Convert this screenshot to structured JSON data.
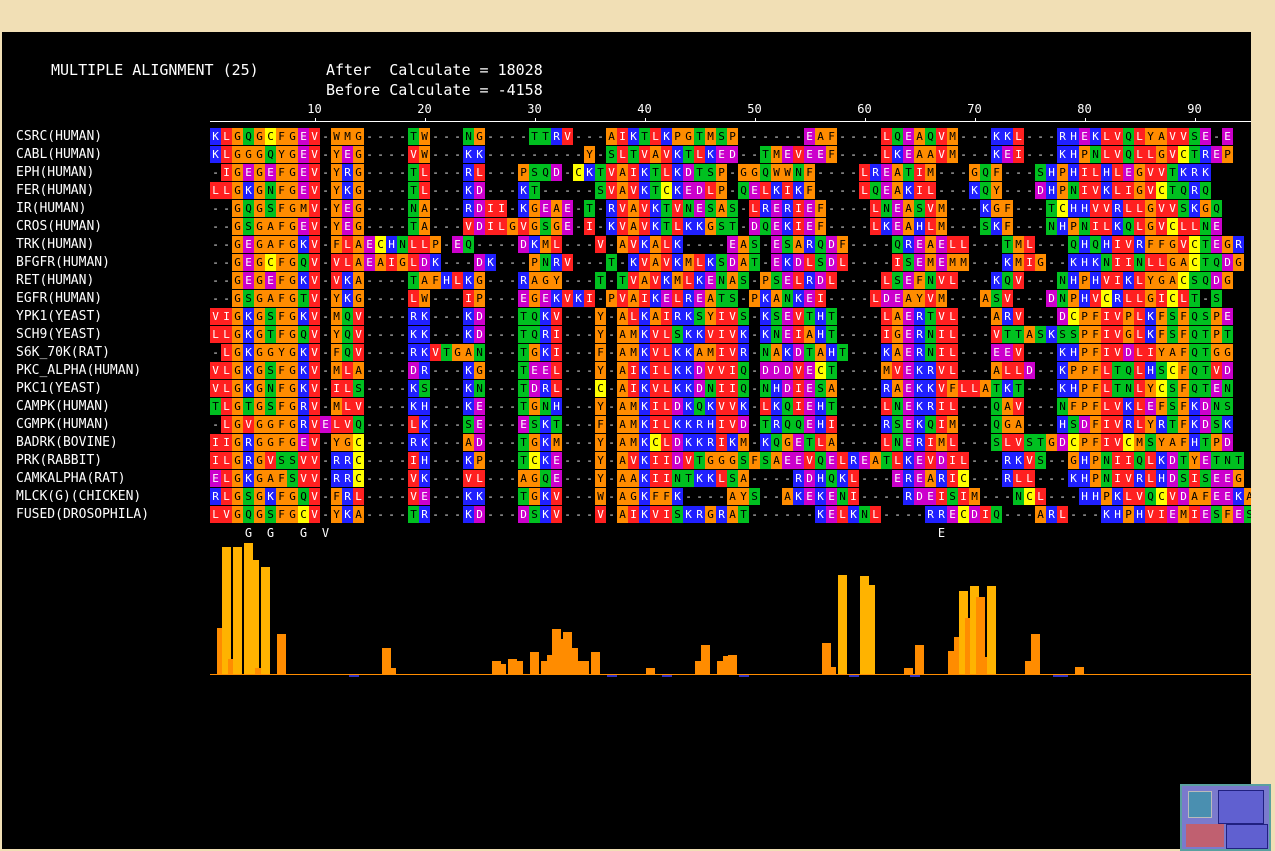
{
  "header": {
    "title": "MULTIPLE ALIGNMENT (25)",
    "after_label": "After  Calculate = 18028",
    "before_label": "Before Calculate = -4158"
  },
  "ruler": {
    "numbers": [
      "10",
      "20",
      "30",
      "40",
      "50",
      "60",
      "70",
      "80",
      "90"
    ]
  },
  "sequences": [
    {
      "name": "CSRC(HUMAN)",
      "seq": "KLGQGCFGEV-WMG----TW---NG----TTRV---AIKTLKPGTMSP------EAF----LQEAQVM---KKL---RHEKLVQLYAVVSE-E"
    },
    {
      "name": "CABL(HUMAN)",
      "seq": "KLGGGQYGEV-YEG----VW---KK---------Y-SLTVAVKTLKED--TMEVEEF----LKEAAVM---KEI---KHPNLVQLLGVCTREP"
    },
    {
      "name": "EPH(HUMAN)",
      "seq": "-IGEGEFGEV-YRG----TL---RL---PSQD-CKTVAIKTLKDTSP-GGQWWNF----LREATIM---GQF---SHPHILHLEGVVTKRK"
    },
    {
      "name": "FER(HUMAN)",
      "seq": "LLGKGNFGEV-YKG----TL---KD---KT-----SVAVKTCKEDLP-QELKIKF----LQEAKIL---KQY---DHPNIVKLIGVCTQRQ"
    },
    {
      "name": "IR(HUMAN)",
      "seq": "--GQGSFGMV-YEG----NA---RDII-KGEAE-T-RVAVKTVNESAS-LRERIEF----LNEASVM---KGF---TCHHVVRLLGVVSKGQ"
    },
    {
      "name": "CROS(HUMAN)",
      "seq": "--GSGAFGEV-YEG----TA---VDILGVGSGE-I-KVAVKTLKKGST-DQEKIEF----LKEAHLM---SKF---NHPNILKQLGVCLLNE"
    },
    {
      "name": "TRK(HUMAN)",
      "seq": "--GEGAFGKV-FLAECHNLLP-EQ----DKML---V-AVKALK----EAS-ESARQDF----QREAELL---TML---QHQHIVRFFGVCTEGR"
    },
    {
      "name": "BFGFR(HUMAN)",
      "seq": "--GEGCFGQV-VLAEAIGLDK---DK---PNRV---T-KVAVKMLKSDAT-EKDLSDL----ISEMEMM---KMIG--KHKNIINLLGACTQDG"
    },
    {
      "name": "RET(HUMAN)",
      "seq": "--GEGEFGKV-VKA----TAFHLKG---RAGY---T-TVAVKMLKENAS-PSELRDL----LSEFNVL---KQV---NHPHVIKLYGACSQDG"
    },
    {
      "name": "EGFR(HUMAN)",
      "seq": "--GSGAFGTV-YKG----LW---IP---EGEKVKI-PVAIKELREATS-PKANKEI----LDEAYVM---ASV---DNPHVCRLLGICLT-S"
    },
    {
      "name": "YPK1(YEAST)",
      "seq": "VIGKGSFGKV-MQV----RK---KD---TQKV---Y-ALKAIRKSYIVS-KSEVTHT----LAERTVL---ARV---DCPFIVPLKFSFQSPE"
    },
    {
      "name": "SCH9(YEAST)",
      "seq": "LLGKGTFGQV-YQV----KK---KD---TQRI---Y-AMKVLSKKVIVK-KNEIAHT----IGERNIL---VTTASKSSPFIVGLKFSFQTPT"
    },
    {
      "name": "S6K_70K(RAT)",
      "seq": "-LGKGGYGKV-FQV----RKVTGAN---TGKI---F-AMKVLKKAMIVR-NAKDTAHT---KAERNIL---EEV---KHPFIVDLIYAFQTGG"
    },
    {
      "name": "PKC_ALPHA(HUMAN)",
      "seq": "VLGKGSFGKV-MLA----DR---KG---TEEL---Y-AIKILKKDVVIQ-DDDVECT----MVEKRVL---ALLD--KPPFLTQLHSCFQTVD"
    },
    {
      "name": "PKC1(YEAST)",
      "seq": "VLGKGNFGKV-ILS----KS---KN---TDRL---C-AIKVLKKDNIIQ-NHDIESA----RAEKKVFLLATKT---KHPFLTNLYCSFQTEN"
    },
    {
      "name": "CAMPK(HUMAN)",
      "seq": "TLGTGSFGRV-MLV----KH---KE---TGNH---Y-AMKILDKQKVVK-LKQIEHT----LNEKRIL---QAV---NFPFLVKLEFSFKDNS"
    },
    {
      "name": "CGMPK(HUMAN)",
      "seq": "-LGVGGFGRVELVQ----LK---SE---ESKT---F-AMKILKKRHIVD-TRQQEHI----RSEKQIM---QGA---HSDFIVRLYRTFKDSK"
    },
    {
      "name": "BADRK(BOVINE)",
      "seq": "IIGRGGFGEV-YGC----RK---AD---TGKM---Y-AMKCLDKKRIKM-KQGETLA----LNERIML---SLVSTGDCPFIVCMSYAFHTPD"
    },
    {
      "name": "PRK(RABBIT)",
      "seq": "ILGRGVSSVV-RRC----IH---KP---TCKE---Y-AVKIIDVTGGGSFSAEEVQELREATLKEVDIL---RKVS--GHPNIIQLKDTYETNT"
    },
    {
      "name": "CAMKALPHA(RAT)",
      "seq": "ELGKGAFSVV-RRC----VK---VL---AGQE---Y-AAKIINTKKLSA----RDHQKL---EREARIC---RLL---KHPNIVRLHDSISEEG"
    },
    {
      "name": "MLCK(G)(CHICKEN)",
      "seq": "RLGSGKFGQV-FRL----VE---KK---TGKV---W-AGKFFK----AYS--AKEKENI----RDEISIM---NCL---HHPKLVQCVDAFEEKA"
    },
    {
      "name": "FUSED(DROSOPHILA)",
      "seq": "LVGQGSFGCV-YKA----TR---KD---DSKV---V-AIKVISKRGRAT------KELKNL----RRECDIQ---ARL---KHPHVIEMIESFESKT"
    }
  ],
  "consensus_marks": [
    {
      "pos": 3,
      "label": "G"
    },
    {
      "pos": 5,
      "label": "G"
    },
    {
      "pos": 8,
      "label": "G"
    },
    {
      "pos": 10,
      "label": "V"
    },
    {
      "pos": 66,
      "label": "E"
    }
  ],
  "conservation_scores": [
    0,
    0.35,
    0.95,
    0.12,
    0.95,
    0,
    0.98,
    0.85,
    0.05,
    0.8,
    0,
    0,
    0.3,
    0,
    0,
    0,
    0,
    0,
    0,
    0,
    0,
    0,
    0,
    0,
    0,
    -0.02,
    0,
    0,
    0,
    0,
    0,
    0.2,
    0.05,
    0,
    0,
    0,
    0,
    0,
    0,
    0,
    0,
    0,
    0,
    0,
    0,
    0,
    0,
    0,
    0,
    0,
    0,
    0.1,
    0.08,
    0,
    0.12,
    0.1,
    0,
    0,
    0.17,
    0,
    0.1,
    0.15,
    0.34,
    0.27,
    0.32,
    0.2,
    0.1,
    0.1,
    0,
    0.17,
    0,
    0,
    -0.01,
    0,
    0,
    0,
    0,
    0,
    0,
    0.05,
    0,
    0,
    -0.02,
    0,
    0,
    0,
    0,
    0,
    0.1,
    0.22,
    0,
    0,
    0.1,
    0.14,
    0.15,
    0,
    -0.02,
    0,
    0,
    0,
    0,
    0,
    0,
    0,
    0,
    0,
    0,
    0,
    0,
    0,
    0,
    0.24,
    0.06,
    0,
    0.74,
    0,
    -0.02,
    0,
    0.73,
    0.67,
    0,
    0,
    0,
    0,
    0,
    0,
    0.05,
    -0.02,
    0.22,
    0,
    0,
    0,
    0,
    0,
    0.18,
    0.28,
    0.62,
    0.42,
    0.66,
    0.58,
    0.13,
    0.66,
    0,
    0,
    0,
    0,
    0,
    0,
    0.1,
    0.3,
    0,
    0,
    0,
    -0.02,
    -0.02,
    0,
    0,
    0.06
  ],
  "colors": {
    "background": "#000000",
    "frame": "#f1dfb5",
    "bar": "#ff8c00",
    "bar_high": "#ffb300",
    "negative": "#3030c0"
  },
  "residue_colors": {
    "A": "#ff8c00",
    "V": "#ff2020",
    "L": "#ff2020",
    "I": "#ff2020",
    "M": "#ff8c00",
    "F": "#ff8c00",
    "W": "#ff8c00",
    "Y": "#ff8c00",
    "G": "#ff8c00",
    "P": "#ff8c00",
    "C": "#ffff00",
    "S": "#00c020",
    "T": "#00c020",
    "N": "#00c020",
    "Q": "#00c020",
    "K": "#2020ff",
    "R": "#2020ff",
    "H": "#2020ff",
    "D": "#cc00cc",
    "E": "#cc00cc"
  }
}
